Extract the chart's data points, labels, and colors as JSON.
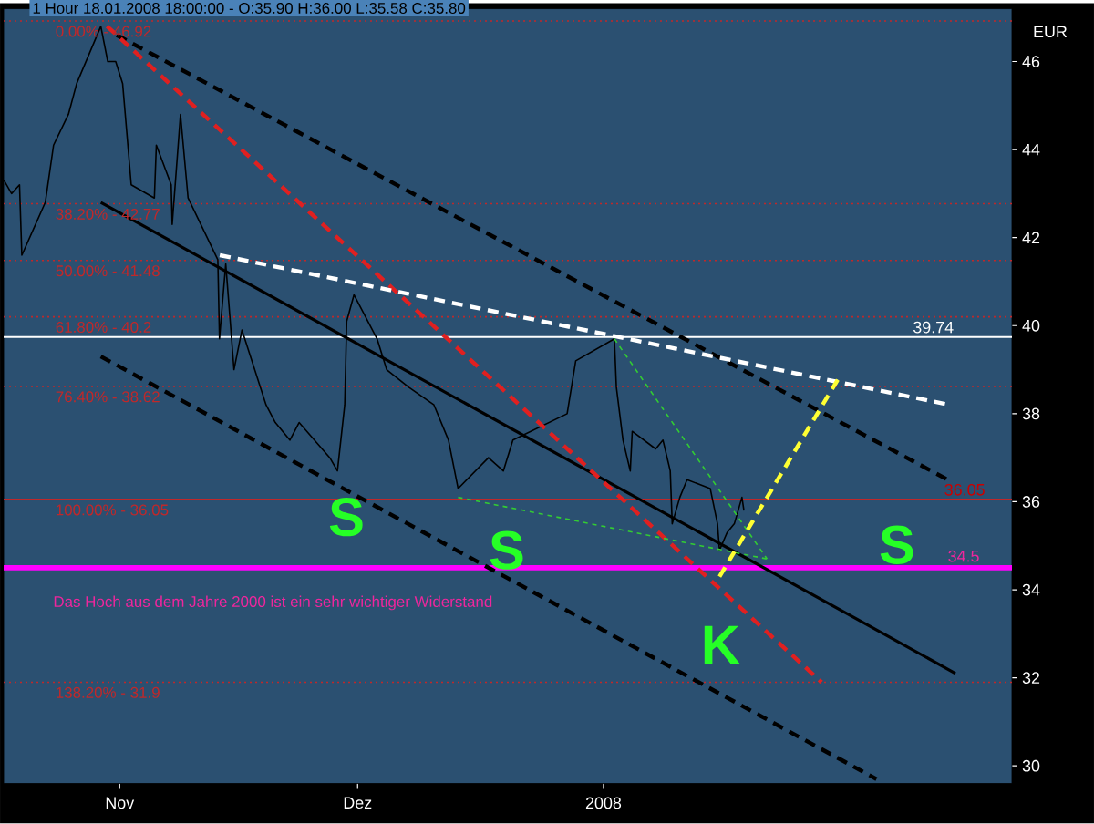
{
  "chart_data": {
    "type": "line",
    "title": "1 Hour 18.01.2008 18:00:00 - O:35.90 H:36.00 L:35.58 C:35.80",
    "ylabel": "EUR",
    "x": [
      "2007-10-17T10:00",
      "2007-10-18T09:00",
      "2007-10-19T09:00",
      "2007-10-19T16:00",
      "2007-10-22T15:00",
      "2007-10-23T16:00",
      "2007-10-25T13:00",
      "2007-10-26T14:00",
      "2007-10-29T15:00",
      "2007-10-30T12:00",
      "2007-10-31T12:00",
      "2007-11-01T09:00",
      "2007-11-02T11:00",
      "2007-11-05T09:00",
      "2007-11-05T15:00",
      "2007-11-07T12:00",
      "2007-11-07T15:00",
      "2007-11-08T16:00",
      "2007-11-09T15:00",
      "2007-11-13T09:00",
      "2007-11-13T14:00",
      "2007-11-14T09:00",
      "2007-11-15T10:00",
      "2007-11-16T10:00",
      "2007-11-19T11:00",
      "2007-11-20T15:00",
      "2007-11-22T11:00",
      "2007-11-23T15:00",
      "2007-11-27T12:00",
      "2007-11-28T11:00",
      "2007-11-29T09:00",
      "2007-11-29T15:00",
      "2007-11-30T13:00",
      "2007-12-03T11:00",
      "2007-12-04T16:00",
      "2007-12-07T11:00",
      "2007-12-10T15:00",
      "2007-12-12T11:00",
      "2007-12-13T16:00",
      "2007-12-17T12:00",
      "2007-12-19T09:00",
      "2007-12-20T14:00",
      "2007-12-27T10:00",
      "2007-12-28T12:00",
      "2008-01-02T09:00",
      "2008-01-02T15:00",
      "2008-01-03T11:00",
      "2008-01-04T09:00",
      "2008-01-04T15:00",
      "2008-01-07T14:00",
      "2008-01-08T12:00",
      "2008-01-09T10:00",
      "2008-01-09T16:00",
      "2008-01-10T15:00",
      "2008-01-11T13:00",
      "2008-01-14T11:00",
      "2008-01-15T09:00",
      "2008-01-15T15:00",
      "2008-01-16T14:00",
      "2008-01-17T12:00",
      "2008-01-18T11:00",
      "2008-01-18T17:00"
    ],
    "series": [
      {
        "color": "#000000",
        "values": [
          43.3,
          43.0,
          43.2,
          41.6,
          42.8,
          44.1,
          44.8,
          45.5,
          46.8,
          46.0,
          46.0,
          45.5,
          43.2,
          42.9,
          44.1,
          43.2,
          42.3,
          44.8,
          42.9,
          41.5,
          39.7,
          41.4,
          39.0,
          39.9,
          38.2,
          37.8,
          37.4,
          37.8,
          37.0,
          36.7,
          38.2,
          40.1,
          40.7,
          39.7,
          39.0,
          38.6,
          38.2,
          37.4,
          36.3,
          37.0,
          36.7,
          37.4,
          38.0,
          39.2,
          39.7,
          38.6,
          37.4,
          36.7,
          37.6,
          37.2,
          37.4,
          36.7,
          35.5,
          36.1,
          36.5,
          36.3,
          35.5,
          34.9,
          35.3,
          35.5,
          36.1,
          35.8
        ]
      },
      {
        "color": "#000000",
        "line_style": "solid",
        "x": [
          "2007-10-29T15:00",
          "2008-02-14T09:00"
        ],
        "values": [
          42.8,
          32.1
        ]
      },
      {
        "color": "#000000",
        "line_style": "dashed",
        "x": [
          "2007-10-31T15:00",
          "2008-02-13T10:00"
        ],
        "values": [
          46.6,
          36.5
        ]
      },
      {
        "color": "#000000",
        "line_style": "dashed",
        "x": [
          "2007-10-29T15:00",
          "2008-02-04T10:00"
        ],
        "values": [
          39.3,
          29.7
        ]
      },
      {
        "color": "#e02020",
        "line_style": "dashed",
        "x": [
          "2007-10-30T10:00",
          "2008-01-28T12:00"
        ],
        "values": [
          46.8,
          31.9
        ]
      },
      {
        "color": "#ffffff",
        "line_style": "dashed",
        "x": [
          "2007-11-13T15:00",
          "2008-02-13T16:00"
        ],
        "values": [
          41.6,
          38.2
        ]
      },
      {
        "color": "#33cc33",
        "line_style": "dotted",
        "x": [
          "2008-01-02T09:00",
          "2008-01-21T15:00"
        ],
        "values": [
          39.7,
          34.7
        ]
      },
      {
        "color": "#33cc33",
        "line_style": "dotted",
        "x": [
          "2007-12-13T16:00",
          "2008-01-21T15:00"
        ],
        "values": [
          36.1,
          34.7
        ]
      },
      {
        "color": "#ffff33",
        "line_style": "dashed",
        "x": [
          "2008-01-15T15:00",
          "2008-01-30T15:00"
        ],
        "values": [
          34.3,
          38.8
        ]
      }
    ],
    "xlim": [
      "2007-10-17T09:00",
      "2008-02-21T12:00"
    ],
    "ylim": [
      29.6,
      47.2
    ],
    "xticks": [
      {
        "value": "2007-11-01",
        "label": "Nov"
      },
      {
        "value": "2007-12-01",
        "label": "Dez"
      },
      {
        "value": "2008-01-01",
        "label": "2008"
      }
    ],
    "yticks": [
      30,
      32,
      34,
      36,
      38,
      40,
      42,
      44,
      46
    ],
    "ref_lines": [
      {
        "axis": "y",
        "value": 46.92,
        "color": "#c0282a",
        "line_style": "dotted"
      },
      {
        "axis": "y",
        "value": 42.77,
        "color": "#c0282a",
        "line_style": "dotted"
      },
      {
        "axis": "y",
        "value": 41.48,
        "color": "#c0282a",
        "line_style": "dotted"
      },
      {
        "axis": "y",
        "value": 40.2,
        "color": "#c0282a",
        "line_style": "dotted"
      },
      {
        "axis": "y",
        "value": 38.62,
        "color": "#c0282a",
        "line_style": "dotted"
      },
      {
        "axis": "y",
        "value": 36.05,
        "color": "#c0282a",
        "line_style": "solid"
      },
      {
        "axis": "y",
        "value": 31.9,
        "color": "#c0282a",
        "line_style": "dotted"
      },
      {
        "axis": "y",
        "value": 39.74,
        "color": "#ffffff",
        "line_style": "solid"
      },
      {
        "axis": "y",
        "value": 34.5,
        "color": "#ff00ff",
        "line_style": "solid"
      }
    ],
    "annotations": [
      "S",
      "S",
      "S",
      "K",
      "Das Hoch aus dem Jahre 2000 ist ein sehr wichtiger Widerstand",
      {
        "text": "39.74",
        "x": "2008-02-11T14:00",
        "y": 39.74
      },
      {
        "text": "36.05",
        "x": "2008-02-15T13:00",
        "y": 36.05
      },
      {
        "text": "34.5",
        "x": "2008-02-15T10:00",
        "y": 34.5
      },
      {
        "text": "0.00% - 46.92",
        "x": "2007-10-23T15:00",
        "y": 46.92
      },
      {
        "text": "38.20% - 42.77",
        "x": "2007-10-23T15:00",
        "y": 42.77
      },
      {
        "text": "50.00% - 41.48",
        "x": "2007-10-23T15:00",
        "y": 41.48
      },
      {
        "text": "61.80% - 40.2",
        "x": "2007-10-23T15:00",
        "y": 40.2
      },
      {
        "text": "76.40% - 38.62",
        "x": "2007-10-23T15:00",
        "y": 38.62
      },
      {
        "text": "100.00% - 36.05",
        "x": "2007-10-23T15:00",
        "y": 36.05
      },
      {
        "text": "138.20% - 31.9",
        "x": "2007-10-23T15:00",
        "y": 31.9
      }
    ],
    "grid": false,
    "marker": "none",
    "line_style": "solid"
  }
}
